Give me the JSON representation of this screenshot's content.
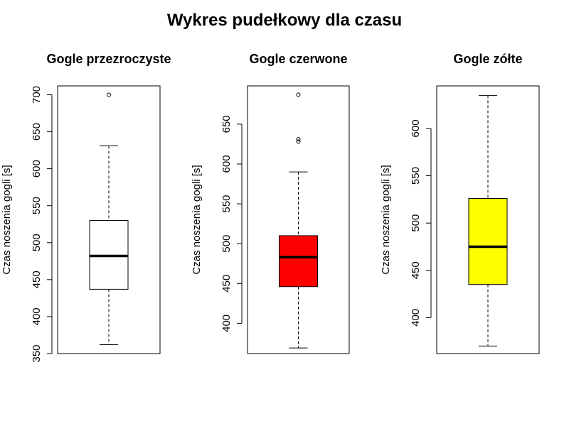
{
  "title": "Wykres pudełkowy dla czasu",
  "chart_data": [
    {
      "type": "box",
      "title": "Gogle przezroczyste",
      "ylabel": "Czas noszenia gogli [s]",
      "fill": "#ffffff",
      "ylim": [
        350,
        712
      ],
      "ticks": [
        350,
        400,
        450,
        500,
        550,
        600,
        650,
        700
      ],
      "tick_labels": [
        "350",
        "400",
        "450",
        "500",
        "550",
        "600",
        "650",
        "700"
      ],
      "whisker_low": 362,
      "q1": 437,
      "median": 482,
      "q3": 530,
      "whisker_high": 631,
      "outliers": [
        700
      ]
    },
    {
      "type": "box",
      "title": "Gogle czerwone",
      "ylabel": "Czas noszenia gogli [s]",
      "fill": "#ff0000",
      "ylim": [
        362,
        698
      ],
      "ticks": [
        400,
        450,
        500,
        550,
        600,
        650
      ],
      "tick_labels": [
        "400",
        "450",
        "500",
        "550",
        "600",
        "650"
      ],
      "whisker_low": 369,
      "q1": 446,
      "median": 483,
      "q3": 510,
      "whisker_high": 590,
      "outliers": [
        628,
        631,
        687
      ]
    },
    {
      "type": "box",
      "title": "Gogle zółte",
      "ylabel": "Czas noszenia gogli [s]",
      "fill": "#ffff00",
      "ylim": [
        362,
        645
      ],
      "ticks": [
        400,
        450,
        500,
        550,
        600
      ],
      "tick_labels": [
        "400",
        "450",
        "500",
        "550",
        "600"
      ],
      "whisker_low": 370,
      "q1": 435,
      "median": 475,
      "q3": 526,
      "whisker_high": 635,
      "outliers": []
    }
  ]
}
